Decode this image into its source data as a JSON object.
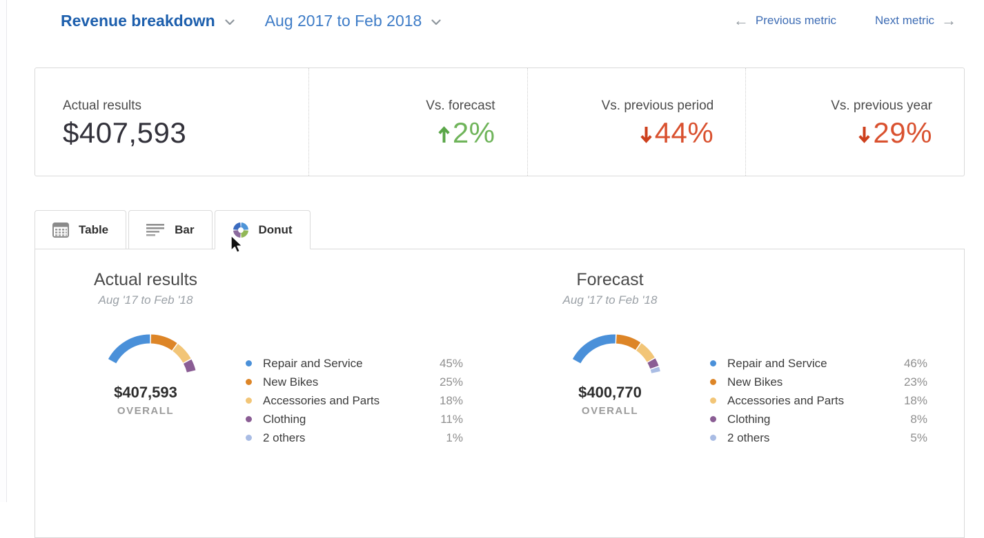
{
  "header": {
    "title": "Revenue breakdown",
    "title_color": "#1d5fad",
    "date_range": "Aug 2017 to Feb 2018",
    "date_color": "#3e7cc7",
    "previous_metric_label": "Previous metric",
    "next_metric_label": "Next metric",
    "prev_arrow": "←",
    "next_arrow": "→"
  },
  "kpis": [
    {
      "label": "Actual results",
      "value": "$407,593",
      "arrow": "",
      "value_color": "#32313a",
      "arrow_color": ""
    },
    {
      "label": "Vs. forecast",
      "value": "2%",
      "arrow": "up",
      "value_color": "#6fb45a",
      "arrow_color": "#5aa648"
    },
    {
      "label": "Vs. previous period",
      "value": "44%",
      "arrow": "down",
      "value_color": "#d9512f",
      "arrow_color": "#cd401d"
    },
    {
      "label": "Vs. previous year",
      "value": "29%",
      "arrow": "down",
      "value_color": "#d9512f",
      "arrow_color": "#cd401d"
    }
  ],
  "tabs": [
    {
      "label": "Table",
      "icon": "table-grid-icon",
      "active": false
    },
    {
      "label": "Bar",
      "icon": "bar-lines-icon",
      "active": false
    },
    {
      "label": "Donut",
      "icon": "donut-icon",
      "active": true
    }
  ],
  "donut_icon_colors": [
    "#3b6bbf",
    "#4e94d8",
    "#92b857",
    "#8b6a9d"
  ],
  "chart_data": [
    {
      "type": "donut",
      "title": "Actual results",
      "subtitle": "Aug '17 to Feb '18",
      "overall_value": "$407,593",
      "overall_label": "OVERALL",
      "categories": [
        "Repair and Service",
        "New Bikes",
        "Accessories and Parts",
        "Clothing",
        "2 others"
      ],
      "values": [
        45,
        25,
        18,
        11,
        1
      ],
      "colors": [
        "#4a90d9",
        "#dd8527",
        "#f2c577",
        "#8a5d94",
        "#a9bce4"
      ],
      "legend_position": "right",
      "render_state": "partial-arc-animating"
    },
    {
      "type": "donut",
      "title": "Forecast",
      "subtitle": "Aug '17 to Feb '18",
      "overall_value": "$400,770",
      "overall_label": "OVERALL",
      "categories": [
        "Repair and Service",
        "New Bikes",
        "Accessories and Parts",
        "Clothing",
        "2 others"
      ],
      "values": [
        46,
        23,
        18,
        8,
        5
      ],
      "colors": [
        "#4a90d9",
        "#dd8527",
        "#f2c577",
        "#8a5d94",
        "#a9bce4"
      ],
      "legend_position": "right",
      "render_state": "partial-arc-animating"
    }
  ]
}
